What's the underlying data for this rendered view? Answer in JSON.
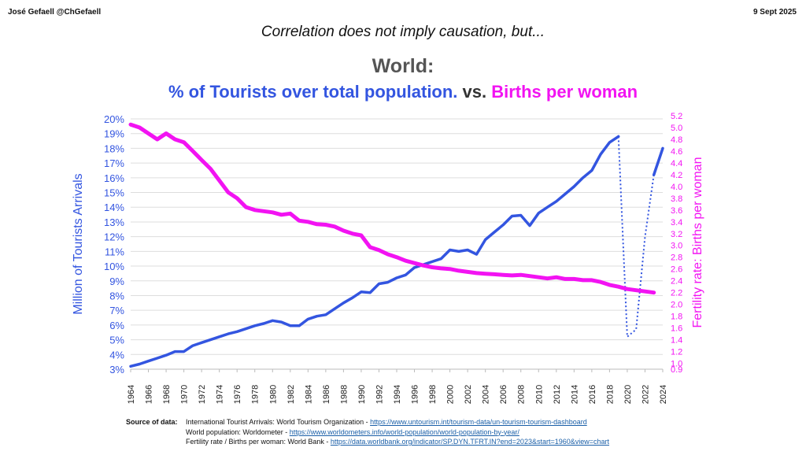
{
  "header": {
    "author": "José Gefaell @ChGefaell",
    "date": "9 Sept 2025",
    "kicker": "Correlation does not imply causation, but...",
    "title": "World:",
    "subtitle_part1": "% of Tourists over total population.",
    "subtitle_part2": " vs. ",
    "subtitle_part3": "Births per woman"
  },
  "colors": {
    "tourists": "#3355e0",
    "fertility": "#f213f2",
    "grid": "#dddddd"
  },
  "chart_data": {
    "type": "line",
    "title": "World:",
    "subtitle": "% of Tourists over total population. vs. Births per woman",
    "ylabel": "Million of Tourists Arrivals",
    "y2label": "Fertility rate:  Births per woman",
    "x_ticks": [
      "1964",
      "1966",
      "1968",
      "1970",
      "1972",
      "1974",
      "1976",
      "1978",
      "1980",
      "1982",
      "1984",
      "1986",
      "1988",
      "1990",
      "1992",
      "1994",
      "1996",
      "1998",
      "2000",
      "2002",
      "2004",
      "2006",
      "2008",
      "2010",
      "2012",
      "2014",
      "2016",
      "2018",
      "2020",
      "2022",
      "2024"
    ],
    "y_ticks": [
      "3%",
      "4%",
      "5%",
      "6%",
      "7%",
      "8%",
      "9%",
      "10%",
      "11%",
      "12%",
      "13%",
      "14%",
      "15%",
      "16%",
      "17%",
      "18%",
      "19%",
      "20%"
    ],
    "y2_ticks": [
      "0.9",
      "1.0",
      "1.2",
      "1.4",
      "1.6",
      "1.8",
      "2.0",
      "2.2",
      "2.4",
      "2.6",
      "2.8",
      "3.0",
      "3.2",
      "3.4",
      "3.6",
      "3.8",
      "4.0",
      "4.2",
      "4.4",
      "4.6",
      "4.8",
      "5.0",
      "5.2"
    ],
    "ylim": [
      3,
      20
    ],
    "y2lim": [
      0.9,
      5.2
    ],
    "xlim": [
      1964,
      2024
    ],
    "grid": true,
    "series": [
      {
        "name": "% of Tourists over total population.",
        "axis": "left",
        "x": [
          1964,
          1965,
          1966,
          1967,
          1968,
          1969,
          1970,
          1971,
          1972,
          1973,
          1974,
          1975,
          1976,
          1977,
          1978,
          1979,
          1980,
          1981,
          1982,
          1983,
          1984,
          1985,
          1986,
          1987,
          1988,
          1989,
          1990,
          1991,
          1992,
          1993,
          1994,
          1995,
          1996,
          1997,
          1998,
          1999,
          2000,
          2001,
          2002,
          2003,
          2004,
          2005,
          2006,
          2007,
          2008,
          2009,
          2010,
          2011,
          2012,
          2013,
          2014,
          2015,
          2016,
          2017,
          2018,
          2019
        ],
        "values": [
          3.2,
          3.35,
          3.55,
          3.75,
          3.95,
          4.2,
          4.2,
          4.6,
          4.8,
          5.0,
          5.2,
          5.4,
          5.55,
          5.75,
          5.95,
          6.1,
          6.3,
          6.2,
          5.95,
          5.95,
          6.4,
          6.6,
          6.7,
          7.1,
          7.5,
          7.85,
          8.25,
          8.2,
          8.8,
          8.9,
          9.2,
          9.4,
          9.9,
          10.1,
          10.3,
          10.5,
          11.1,
          11.0,
          11.1,
          10.8,
          11.8,
          12.3,
          12.8,
          13.4,
          13.45,
          12.75,
          13.6,
          14.0,
          14.4,
          14.9,
          15.4,
          16.0,
          16.5,
          17.6,
          18.4,
          18.8
        ]
      },
      {
        "name": "% of Tourists over total population.",
        "axis": "left",
        "style": "dotted",
        "x": [
          2019,
          2020,
          2021,
          2022,
          2023
        ],
        "values": [
          18.8,
          5.2,
          5.7,
          12.0,
          16.2
        ]
      },
      {
        "name": "% of Tourists over total population.",
        "axis": "left",
        "x": [
          2023,
          2024
        ],
        "values": [
          16.2,
          18.0
        ]
      },
      {
        "name": "Births per woman",
        "axis": "right",
        "x": [
          1964,
          1965,
          1966,
          1967,
          1968,
          1969,
          1970,
          1971,
          1972,
          1973,
          1974,
          1975,
          1976,
          1977,
          1978,
          1979,
          1980,
          1981,
          1982,
          1983,
          1984,
          1985,
          1986,
          1987,
          1988,
          1989,
          1990,
          1991,
          1992,
          1993,
          1994,
          1995,
          1996,
          1997,
          1998,
          1999,
          2000,
          2001,
          2002,
          2003,
          2004,
          2005,
          2006,
          2007,
          2008,
          2009,
          2010,
          2011,
          2012,
          2013,
          2014,
          2015,
          2016,
          2017,
          2018,
          2019,
          2020,
          2021,
          2022,
          2023
        ],
        "values": [
          5.05,
          5.0,
          4.9,
          4.8,
          4.9,
          4.8,
          4.75,
          4.6,
          4.45,
          4.3,
          4.1,
          3.9,
          3.8,
          3.65,
          3.6,
          3.58,
          3.56,
          3.52,
          3.54,
          3.42,
          3.4,
          3.36,
          3.35,
          3.32,
          3.25,
          3.2,
          3.17,
          2.97,
          2.92,
          2.85,
          2.8,
          2.74,
          2.7,
          2.66,
          2.63,
          2.61,
          2.6,
          2.57,
          2.55,
          2.53,
          2.52,
          2.51,
          2.5,
          2.49,
          2.5,
          2.48,
          2.46,
          2.44,
          2.46,
          2.43,
          2.43,
          2.41,
          2.41,
          2.38,
          2.33,
          2.3,
          2.26,
          2.24,
          2.22,
          2.2
        ]
      }
    ]
  },
  "sources": {
    "label": "Source of data:",
    "line1_text": "International Tourist Arrivals: World Tourism Organization -  ",
    "line1_link": "https://www.untourism.int/tourism-data/un-tourism-tourism-dashboard",
    "line2_text": "World population:  Worldometer - ",
    "line2_link": "https://www.worldometers.info/world-population/world-population-by-year/",
    "line3_text": "Fertility rate / Births per woman: World Bank -  ",
    "line3_link": "https://data.worldbank.org/indicator/SP.DYN.TFRT.IN?end=2023&start=1960&view=chart"
  }
}
